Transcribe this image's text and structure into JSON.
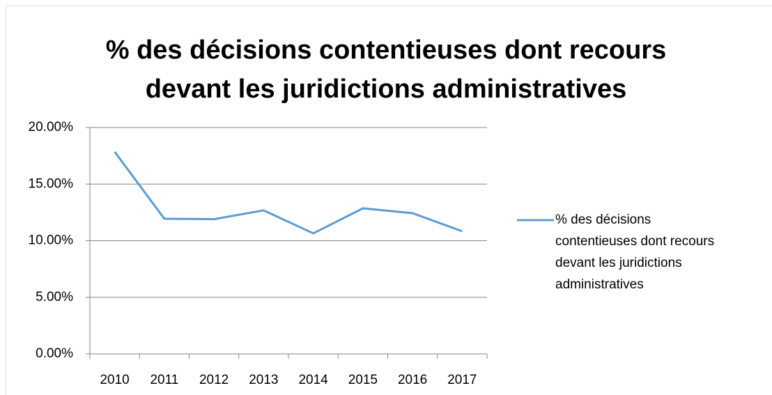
{
  "chart_data": {
    "type": "line",
    "title": "% des décisions contentieuses dont recours devant les juridictions administratives",
    "categories": [
      "2010",
      "2011",
      "2012",
      "2013",
      "2014",
      "2015",
      "2016",
      "2017"
    ],
    "series": [
      {
        "name": "% des décisions contentieuses dont recours devant les juridictions administratives",
        "color": "#5b9bd5",
        "values": [
          17.85,
          11.94,
          11.9,
          12.68,
          10.65,
          12.86,
          12.43,
          10.83
        ]
      }
    ],
    "ylim": [
      0,
      20
    ],
    "yticks": [
      {
        "value": 0,
        "label": "0.00%"
      },
      {
        "value": 5,
        "label": "5.00%"
      },
      {
        "value": 10,
        "label": "10.00%"
      },
      {
        "value": 15,
        "label": "15.00%"
      },
      {
        "value": 20,
        "label": "20.00%"
      }
    ],
    "grid": true,
    "legend": "right"
  }
}
